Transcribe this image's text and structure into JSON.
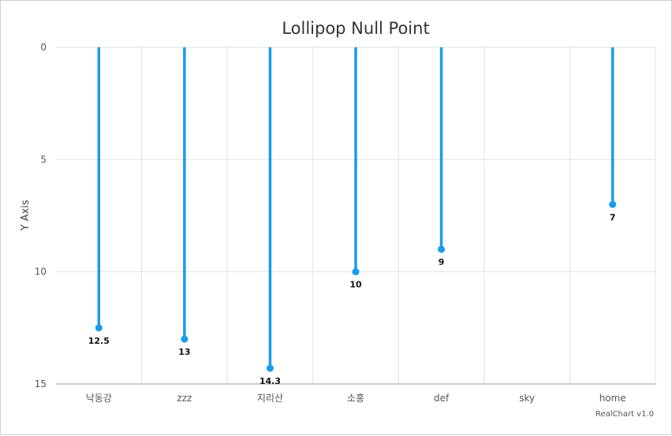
{
  "chart_data": {
    "type": "lollipop",
    "title": "Lollipop Null Point",
    "ylabel": "Y Axis",
    "xlabel": "",
    "categories": [
      "낙동강",
      "zzz",
      "지리산",
      "소홍",
      "def",
      "sky",
      "home"
    ],
    "values": [
      12.5,
      13,
      14.3,
      10,
      9,
      null,
      7
    ],
    "ylim": [
      0,
      15
    ],
    "y_reversed": true,
    "y_ticks": [
      0,
      5,
      10,
      15
    ],
    "grid": true,
    "color": "#1a9cec",
    "credit": "RealChart v1.0"
  }
}
